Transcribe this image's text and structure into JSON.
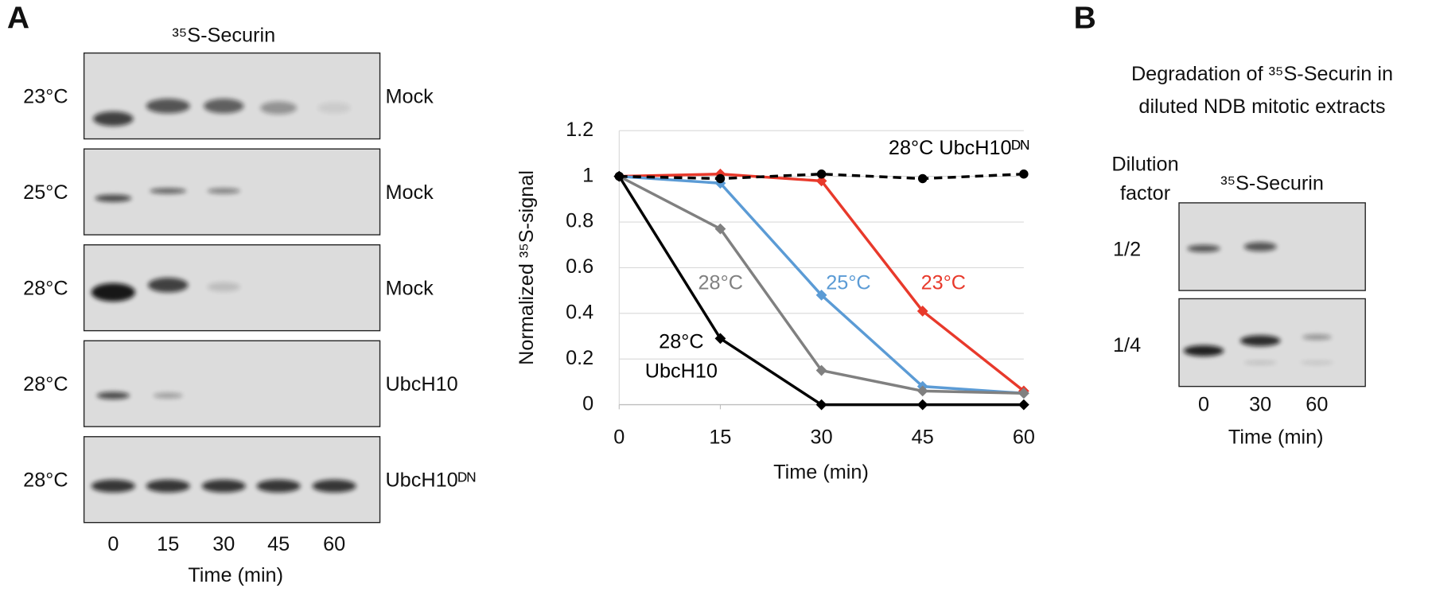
{
  "panel_a": {
    "label": "A",
    "gel_title": "³⁵S-Securin",
    "rows": [
      {
        "temperature": "23°C",
        "condition": "Mock"
      },
      {
        "temperature": "25°C",
        "condition": "Mock"
      },
      {
        "temperature": "28°C",
        "condition": "Mock"
      },
      {
        "temperature": "28°C",
        "condition": "UbcH10"
      },
      {
        "temperature": "28°C",
        "condition": "UbcH10ᴰᴺ"
      }
    ],
    "lanes": [
      "0",
      "15",
      "30",
      "45",
      "60"
    ],
    "x_label": "Time (min)"
  },
  "chart_data": {
    "type": "line",
    "x_label": "Time (min)",
    "y_label": "Normalized ³⁵S-signal",
    "x": [
      0,
      15,
      30,
      45,
      60
    ],
    "xlim": [
      0,
      60
    ],
    "xticks": [
      0,
      15,
      30,
      45,
      60
    ],
    "ylim": [
      0,
      1.2
    ],
    "yticks": [
      0,
      0.2,
      0.4,
      0.6,
      0.8,
      1,
      1.2
    ],
    "grid": true,
    "series": [
      {
        "name": "23°C",
        "color": "#e8392b",
        "marker": "diamond",
        "values": [
          1,
          1.01,
          0.98,
          0.41,
          0.06
        ]
      },
      {
        "name": "25°C",
        "color": "#5b9bd5",
        "marker": "diamond",
        "values": [
          1,
          0.97,
          0.48,
          0.08,
          0.05
        ]
      },
      {
        "name": "28°C",
        "color": "#808080",
        "marker": "diamond",
        "values": [
          1,
          0.77,
          0.15,
          0.06,
          0.05
        ]
      },
      {
        "name": "28°C UbcH10",
        "color": "#000000",
        "marker": "diamond",
        "values": [
          1,
          0.29,
          0,
          0,
          0
        ]
      },
      {
        "name": "28°C UbcH10ᴰᴺ",
        "color": "#000000",
        "marker": "circle",
        "line_style": "dashed",
        "values": [
          1,
          0.99,
          1.01,
          0.99,
          1.01
        ]
      }
    ]
  },
  "panel_b": {
    "label": "B",
    "title_lines": [
      "Degradation of ³⁵S-Securin in",
      "diluted NDB mitotic extracts"
    ],
    "row_header_lines": [
      "Dilution",
      "factor"
    ],
    "gel_title": "³⁵S-Securin",
    "rows": [
      "1/2",
      "1/4"
    ],
    "lanes": [
      "0",
      "30",
      "60"
    ],
    "x_label": "Time (min)"
  }
}
